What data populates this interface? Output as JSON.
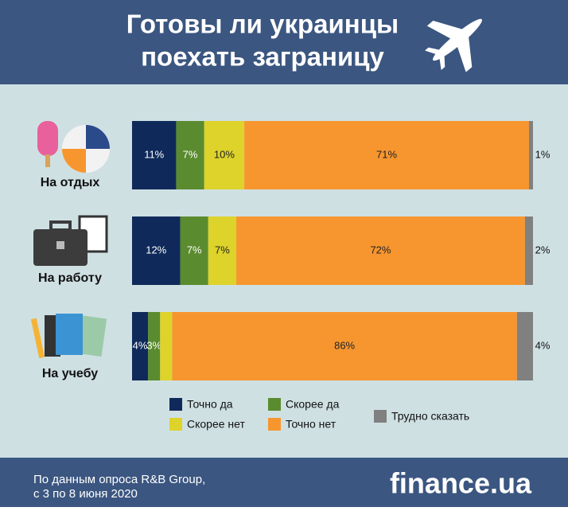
{
  "chart_data": {
    "type": "stacked-bar-horizontal",
    "title_lines": [
      "Готовы ли украинцы",
      "поехать заграницу"
    ],
    "categories": [
      "На отдых",
      "На работу",
      "На учебу"
    ],
    "series": [
      {
        "name": "Точно да",
        "color": "#0f2a5a",
        "values": [
          11,
          12,
          4
        ],
        "value_labels": [
          "11%",
          "12%",
          "4%"
        ]
      },
      {
        "name": "Скорее да",
        "color": "#5b8b2f",
        "values": [
          7,
          7,
          3
        ],
        "value_labels": [
          "7%",
          "7%",
          "3%"
        ]
      },
      {
        "name": "Скорее нет",
        "color": "#ddd32b",
        "values": [
          10,
          7,
          3
        ],
        "value_labels": [
          "10%",
          "7%",
          null
        ]
      },
      {
        "name": "Точно нет",
        "color": "#f7962f",
        "values": [
          71,
          72,
          86
        ],
        "value_labels": [
          "71%",
          "72%",
          "86%"
        ]
      },
      {
        "name": "Трудно сказать",
        "color": "#808080",
        "values": [
          1,
          2,
          4
        ],
        "value_labels": [
          "1%",
          "2%",
          "4%"
        ]
      }
    ],
    "source_lines": [
      "По данным опроса R&B Group,",
      "с 3 по 8 июня 2020"
    ],
    "brand": "finance.ua"
  }
}
